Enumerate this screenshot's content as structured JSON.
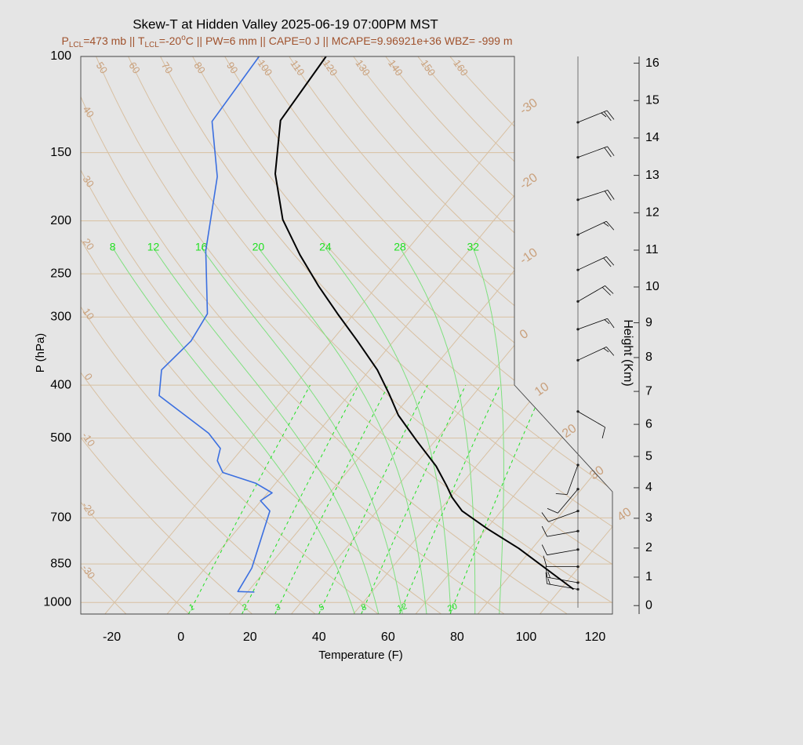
{
  "chart_data": {
    "type": "skewt",
    "title": "Skew-T at Hidden Valley 2025-06-19 07:00PM MST",
    "subtitle": [
      "P",
      "LCL",
      "=473 mb || T",
      "LCL",
      "=-20",
      "o",
      "C || PW=6 mm || CAPE=0 J || MCAPE=9.96921e+36 WBZ= -999 m"
    ],
    "x_label": "Temperature (F)",
    "y_label": "P (hPa)",
    "y2_label": "Height (Km)",
    "xlim": [
      -29,
      125
    ],
    "xticks": [
      -20,
      0,
      20,
      40,
      60,
      80,
      100,
      120
    ],
    "ylim": [
      1050,
      100
    ],
    "yticks": [
      100,
      150,
      200,
      250,
      300,
      400,
      500,
      700,
      850,
      1000
    ],
    "log_y": true,
    "y2ticks": [
      0,
      1,
      2,
      3,
      4,
      5,
      6,
      7,
      8,
      9,
      10,
      11,
      12,
      13,
      14,
      15,
      16
    ],
    "series": [
      {
        "color": "#000000",
        "pressure": [
          100,
          131,
          164,
          199,
          231,
          263,
          296,
          332,
          375,
          415,
          454,
          505,
          563,
          611,
          642,
          680,
          733,
          796,
          946
        ],
        "values": [
          -92,
          -89.8,
          -78.5,
          -65.3,
          -51.8,
          -39.1,
          -26.8,
          -14.5,
          -1.8,
          7.4,
          15.2,
          26.5,
          38.4,
          46.1,
          50.5,
          56.7,
          68.3,
          82.1,
          107.8
        ]
      },
      {
        "color": "#3b6fe0",
        "pressure": [
          100,
          131.5,
          166,
          227,
          296,
          332,
          375,
          418,
          490,
          522,
          550,
          578,
          605,
          630,
          651,
          680,
          865,
          955,
          957
        ],
        "values": [
          -111.4,
          -109.4,
          -94.6,
          -80.1,
          -64.5,
          -62.7,
          -64.3,
          -58.8,
          -35.4,
          -28.4,
          -26.3,
          -21.9,
          -9.7,
          -2.7,
          -4.2,
          1.0,
          9.5,
          11.1,
          16.0
        ]
      }
    ],
    "dry_adiabats": [
      -30,
      -20,
      -10,
      0,
      10,
      20,
      30,
      40,
      50,
      60,
      70,
      80,
      90,
      100,
      110,
      120,
      130,
      140,
      150,
      160
    ],
    "isotherms": [
      -30,
      -20,
      -10,
      0,
      10,
      20,
      30,
      40
    ],
    "moist_adiabats": [
      8,
      12,
      16,
      20,
      24,
      28,
      32
    ],
    "mixing_ratios": [
      1,
      2,
      3,
      5,
      8,
      12,
      20
    ],
    "wind": {
      "pressure": [
        132,
        153,
        183,
        212,
        246,
        281,
        316,
        360,
        447,
        560,
        620,
        680,
        740,
        800,
        860,
        920,
        946
      ],
      "speed": [
        25,
        20,
        20,
        15,
        20,
        20,
        15,
        15,
        10,
        10,
        10,
        10,
        10,
        10,
        10,
        15,
        15
      ],
      "direction": [
        68,
        70,
        72,
        65,
        65,
        60,
        70,
        65,
        120,
        200,
        220,
        250,
        260,
        260,
        270,
        280,
        280
      ]
    }
  }
}
